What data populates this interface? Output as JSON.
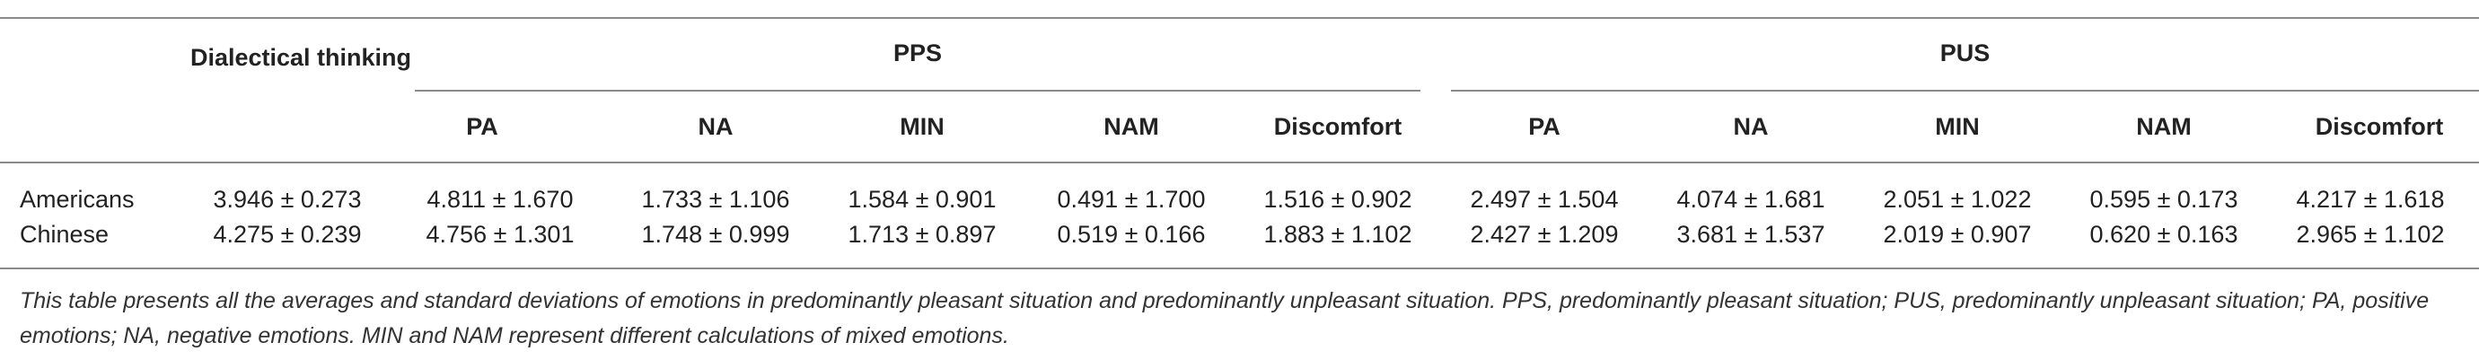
{
  "table": {
    "header": {
      "dialectical": "Dialectical thinking",
      "group_pps": "PPS",
      "group_pus": "PUS",
      "columns": [
        "PA",
        "NA",
        "MIN",
        "NAM",
        "Discomfort",
        "PA",
        "NA",
        "MIN",
        "NAM",
        "Discomfort"
      ]
    },
    "rows": [
      {
        "label": "Americans",
        "cells": [
          "3.946 ± 0.273",
          "4.811 ± 1.670",
          "1.733 ± 1.106",
          "1.584 ± 0.901",
          "0.491 ± 1.700",
          "1.516 ± 0.902",
          "2.497 ± 1.504",
          "4.074 ± 1.681",
          "2.051 ± 1.022",
          "0.595 ± 0.173",
          "4.217 ± 1.618"
        ]
      },
      {
        "label": "Chinese",
        "cells": [
          "4.275 ± 0.239",
          "4.756 ± 1.301",
          "1.748 ± 0.999",
          "1.713 ± 0.897",
          "0.519 ± 0.166",
          "1.883 ± 1.102",
          "2.427 ± 1.209",
          "3.681 ± 1.537",
          "2.019 ± 0.907",
          "0.620 ± 0.163",
          "2.965 ± 1.102"
        ]
      }
    ],
    "footnote": "This table presents all the averages and standard deviations of emotions in predominantly pleasant situation and predominantly unpleasant situation. PPS, predominantly pleasant situation; PUS, predominantly unpleasant situation; PA, positive emotions; NA, negative emotions. MIN and NAM represent different calculations of mixed emotions."
  }
}
